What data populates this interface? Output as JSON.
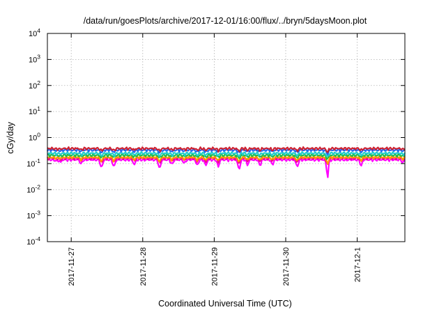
{
  "chart_data": {
    "type": "line",
    "title": "/data/run/goesPlots/archive/2017-12-01/16:00/flux/../bryn/5daysMoon.plot",
    "xlabel": "Coordinated Universal Time (UTC)",
    "ylabel": "cGy/day",
    "yscale": "log",
    "ylim": [
      0.0001,
      10000
    ],
    "y_ticks": [
      {
        "value": 0.0001,
        "base": "10",
        "exp": "-4"
      },
      {
        "value": 0.001,
        "base": "10",
        "exp": "-3"
      },
      {
        "value": 0.01,
        "base": "10",
        "exp": "-2"
      },
      {
        "value": 0.1,
        "base": "10",
        "exp": "-1"
      },
      {
        "value": 1,
        "base": "10",
        "exp": "0"
      },
      {
        "value": 10,
        "base": "10",
        "exp": "1"
      },
      {
        "value": 100,
        "base": "10",
        "exp": "2"
      },
      {
        "value": 1000,
        "base": "10",
        "exp": "3"
      },
      {
        "value": 10000,
        "base": "10",
        "exp": "4"
      }
    ],
    "xlim": [
      "2017-11-26 16:00",
      "2017-12-01 16:00"
    ],
    "x_ticks": [
      {
        "value": "2017-11-27",
        "label": "2017-11-27"
      },
      {
        "value": "2017-11-28",
        "label": "2017-11-28"
      },
      {
        "value": "2017-11-29",
        "label": "2017-11-29"
      },
      {
        "value": "2017-11-30",
        "label": "2017-11-30"
      },
      {
        "value": "2017-12-01",
        "label": "2017-12-1"
      }
    ],
    "grid": true,
    "series": [
      {
        "color": "#cc2233",
        "base": 0.38
      },
      {
        "color": "#2266ee",
        "base": 0.33
      },
      {
        "color": "#22cccc",
        "base": 0.25
      },
      {
        "color": "#22bb44",
        "base": 0.21
      },
      {
        "color": "#ff9900",
        "base": 0.175
      },
      {
        "color": "#ee1188",
        "base": 0.16
      },
      {
        "color": "#ff00ff",
        "base": 0.14
      }
    ],
    "dips": [
      {
        "x": "2017-11-26 19:05",
        "depth": 0.85
      },
      {
        "x": "2017-11-26 20:25",
        "depth": 0.8
      },
      {
        "x": "2017-11-27 03:20",
        "depth": 0.65
      },
      {
        "x": "2017-11-27 10:10",
        "depth": 0.4
      },
      {
        "x": "2017-11-27 14:20",
        "depth": 0.45
      },
      {
        "x": "2017-11-27 21:10",
        "depth": 0.6
      },
      {
        "x": "2017-11-28 05:40",
        "depth": 0.35
      },
      {
        "x": "2017-11-28 09:50",
        "depth": 0.6
      },
      {
        "x": "2017-11-28 14:00",
        "depth": 0.7
      },
      {
        "x": "2017-11-28 18:20",
        "depth": 0.55
      },
      {
        "x": "2017-11-28 21:10",
        "depth": 0.55
      },
      {
        "x": "2017-11-29 01:20",
        "depth": 0.5
      },
      {
        "x": "2017-11-29 08:20",
        "depth": 0.3
      },
      {
        "x": "2017-11-29 11:10",
        "depth": 0.6
      },
      {
        "x": "2017-11-29 15:20",
        "depth": 0.55
      },
      {
        "x": "2017-11-29 19:30",
        "depth": 0.6
      },
      {
        "x": "2017-11-30 03:50",
        "depth": 0.45
      },
      {
        "x": "2017-11-30 14:00",
        "depth": 0.09
      },
      {
        "x": "2017-12-01 01:20",
        "depth": 0.55
      },
      {
        "x": "2017-12-01 15:20",
        "depth": 0.75
      }
    ]
  }
}
